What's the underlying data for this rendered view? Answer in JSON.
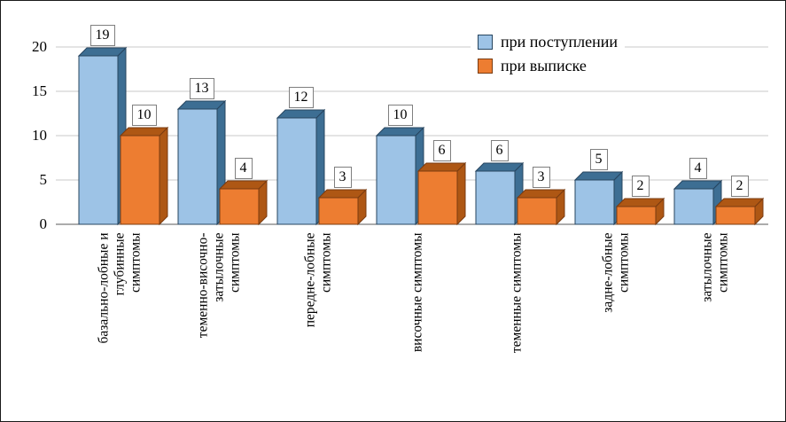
{
  "chart_data": {
    "type": "bar",
    "subtype": "3d-clustered-column",
    "title": "",
    "categories": [
      "базально-лобные и\nглубинные\nсимптомы",
      "теменно-височно-\nзатылочные\nсимптомы",
      "передне-лобные\nсимптомы",
      "височные симптомы",
      "теменные симптомы",
      "задне-лобные\nсимптомы",
      "затылочные\nсимптомы"
    ],
    "series": [
      {
        "name": "при поступлении",
        "values": [
          19,
          13,
          12,
          10,
          6,
          5,
          4
        ],
        "color": "#9DC3E6",
        "side_color": "#3D6E93",
        "border_color": "#27455F"
      },
      {
        "name": "при выписке",
        "values": [
          10,
          4,
          3,
          6,
          3,
          2,
          2
        ],
        "color": "#ED7D31",
        "side_color": "#AE5714",
        "border_color": "#7A3B10"
      }
    ],
    "y_ticks": [
      0,
      5,
      10,
      15,
      20
    ],
    "ylim": [
      0,
      20
    ],
    "grid": true,
    "data_labels": true,
    "legend_position": "top-right"
  }
}
